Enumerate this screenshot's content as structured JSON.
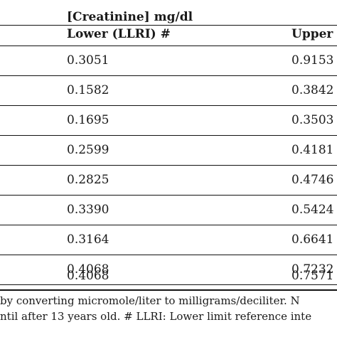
{
  "table": {
    "group_header": "[Creatinine] mg/dl",
    "columns": {
      "lower": "Lower (LLRI) #",
      "upper": "Upper"
    },
    "rows": [
      {
        "lower": "0.3051",
        "upper": "0.9153"
      },
      {
        "lower": "0.1582",
        "upper": "0.3842"
      },
      {
        "lower": "0.1695",
        "upper": "0.3503"
      },
      {
        "lower": "0.2599",
        "upper": "0.4181"
      },
      {
        "lower": "0.2825",
        "upper": "0.4746"
      },
      {
        "lower": "0.3390",
        "upper": "0.5424"
      },
      {
        "lower": "0.3164",
        "upper": "0.6641"
      },
      {
        "lower": "0.4068",
        "upper": "0.7232"
      },
      {
        "lower": "0.4068",
        "upper": "0.7571"
      }
    ]
  },
  "footnote": {
    "line1": "by converting micromole/liter to milligrams/deciliter. N",
    "line2": "ntil after 13 years old. # LLRI: Lower limit reference inte"
  }
}
